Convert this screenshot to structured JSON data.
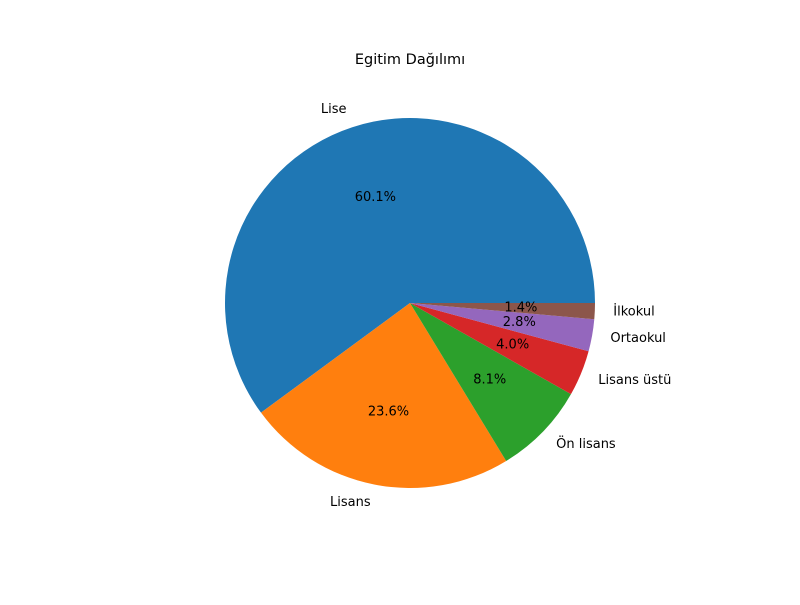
{
  "chart_data": {
    "type": "pie",
    "title": "Egitim Dağılımı",
    "categories": [
      "Lise",
      "Lisans",
      "Ön lisans",
      "Lisans üstü",
      "Ortaokul",
      "İlkokul"
    ],
    "values": [
      60.1,
      23.6,
      8.1,
      4.0,
      2.8,
      1.4
    ],
    "value_labels": [
      "60.1%",
      "23.6%",
      "8.1%",
      "4.0%",
      "2.8%",
      "1.4%"
    ],
    "colors": [
      "#1f77b4",
      "#ff7f0e",
      "#2ca02c",
      "#d62728",
      "#9467bd",
      "#8c564b"
    ],
    "start_angle_deg": 0,
    "direction": "counterclockwise"
  }
}
